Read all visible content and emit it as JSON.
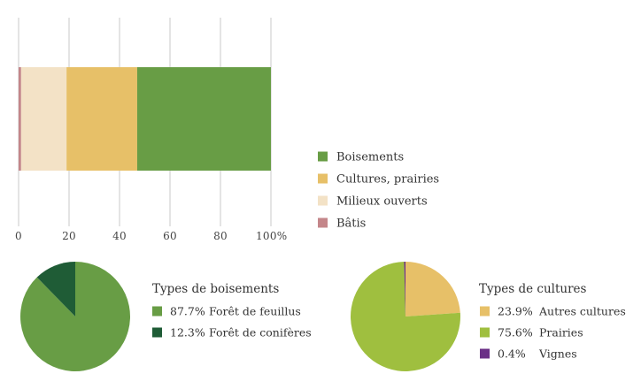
{
  "chart_data": [
    {
      "type": "bar",
      "orientation": "horizontal",
      "stacked": true,
      "xlim": [
        0,
        100
      ],
      "x_ticks": [
        "0",
        "20",
        "40",
        "60",
        "80",
        "100%"
      ],
      "grid": true,
      "legend_position": "right",
      "series": [
        {
          "name": "Bâtis",
          "value": 1,
          "color": "#c4868a"
        },
        {
          "name": "Milieux ouverts",
          "value": 18,
          "color": "#f3e2c6"
        },
        {
          "name": "Cultures, prairies",
          "value": 28,
          "color": "#e7c068"
        },
        {
          "name": "Boisements",
          "value": 53,
          "color": "#689d45"
        }
      ],
      "legend_order": [
        "Boisements",
        "Cultures, prairies",
        "Milieux ouverts",
        "Bâtis"
      ]
    },
    {
      "type": "pie",
      "title": "Types de boisements",
      "slices": [
        {
          "label": "Forêt de feuillus",
          "value": 87.7,
          "value_label": "87.7%",
          "color": "#689d45"
        },
        {
          "label": "Forêt de conifères",
          "value": 12.3,
          "value_label": "12.3%",
          "color": "#1f5c36"
        }
      ]
    },
    {
      "type": "pie",
      "title": "Types de cultures",
      "slices": [
        {
          "label": "Autres cultures",
          "value": 23.9,
          "value_label": "23.9%",
          "color": "#e7c068"
        },
        {
          "label": "Prairies",
          "value": 75.6,
          "value_label": "75.6%",
          "color": "#9fbf3f"
        },
        {
          "label": "Vignes",
          "value": 0.4,
          "value_label": "0.4%",
          "color": "#6a2f86"
        }
      ]
    }
  ]
}
